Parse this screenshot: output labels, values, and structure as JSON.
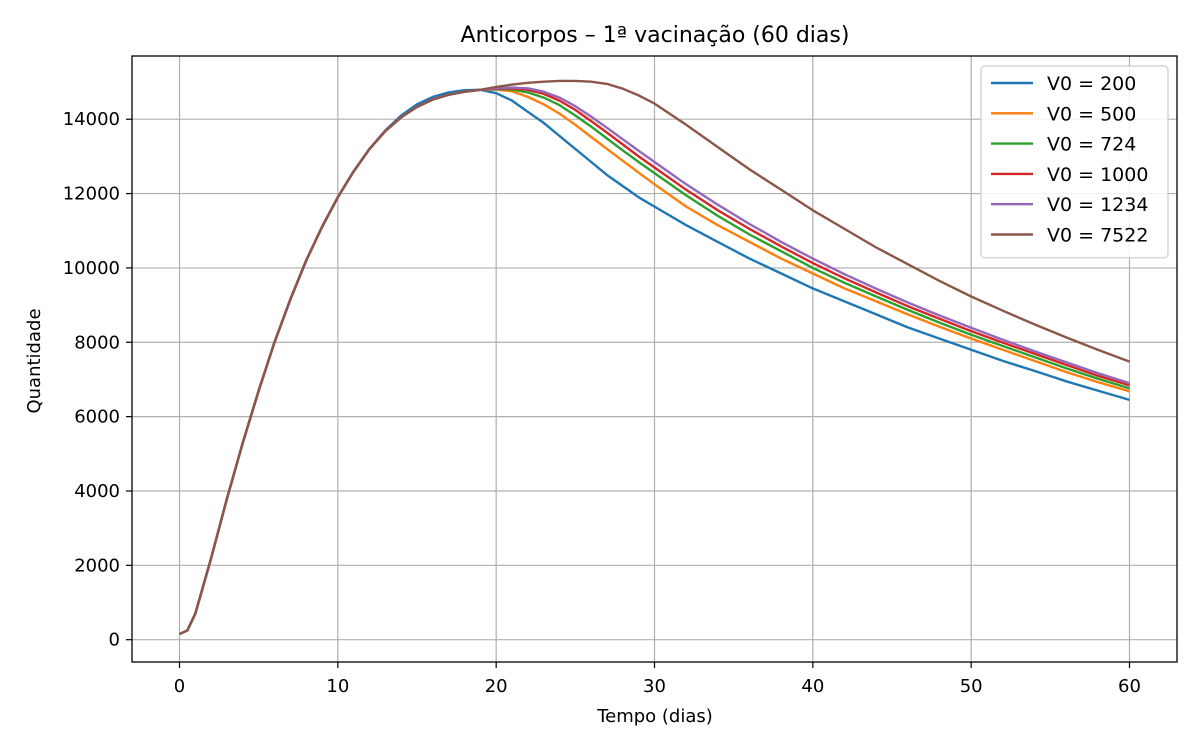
{
  "chart_data": {
    "type": "line",
    "title": "Anticorpos – 1ª vacinação (60 dias)",
    "xlabel": "Tempo (dias)",
    "ylabel": "Quantidade",
    "xlim": [
      -3,
      63
    ],
    "ylim": [
      -600,
      15700
    ],
    "xticks": [
      0,
      10,
      20,
      30,
      40,
      50,
      60
    ],
    "yticks": [
      0,
      2000,
      4000,
      6000,
      8000,
      10000,
      12000,
      14000
    ],
    "grid": true,
    "legend_position": "top-right",
    "series": [
      {
        "name": "V0 = 200",
        "color": "#1f77b4",
        "points": [
          [
            0,
            150
          ],
          [
            0.5,
            250
          ],
          [
            1,
            700
          ],
          [
            2,
            2200
          ],
          [
            3,
            3800
          ],
          [
            4,
            5300
          ],
          [
            5,
            6700
          ],
          [
            6,
            8000
          ],
          [
            7,
            9150
          ],
          [
            8,
            10200
          ],
          [
            9,
            11100
          ],
          [
            10,
            11900
          ],
          [
            11,
            12600
          ],
          [
            12,
            13200
          ],
          [
            13,
            13700
          ],
          [
            14,
            14100
          ],
          [
            15,
            14400
          ],
          [
            16,
            14600
          ],
          [
            17,
            14720
          ],
          [
            18,
            14780
          ],
          [
            19,
            14790
          ],
          [
            20,
            14700
          ],
          [
            21,
            14500
          ],
          [
            22,
            14200
          ],
          [
            23,
            13900
          ],
          [
            24,
            13550
          ],
          [
            25,
            13200
          ],
          [
            26,
            12850
          ],
          [
            27,
            12500
          ],
          [
            28,
            12200
          ],
          [
            29,
            11900
          ],
          [
            30,
            11650
          ],
          [
            32,
            11150
          ],
          [
            34,
            10700
          ],
          [
            36,
            10250
          ],
          [
            38,
            9850
          ],
          [
            40,
            9450
          ],
          [
            42,
            9100
          ],
          [
            44,
            8750
          ],
          [
            46,
            8400
          ],
          [
            48,
            8100
          ],
          [
            50,
            7800
          ],
          [
            52,
            7500
          ],
          [
            54,
            7230
          ],
          [
            56,
            6950
          ],
          [
            58,
            6700
          ],
          [
            60,
            6450
          ]
        ]
      },
      {
        "name": "V0 = 500",
        "color": "#ff7f0e",
        "points": [
          [
            0,
            150
          ],
          [
            0.5,
            250
          ],
          [
            1,
            700
          ],
          [
            2,
            2200
          ],
          [
            3,
            3800
          ],
          [
            4,
            5300
          ],
          [
            5,
            6700
          ],
          [
            6,
            8000
          ],
          [
            7,
            9150
          ],
          [
            8,
            10200
          ],
          [
            9,
            11100
          ],
          [
            10,
            11900
          ],
          [
            11,
            12600
          ],
          [
            12,
            13200
          ],
          [
            13,
            13680
          ],
          [
            14,
            14050
          ],
          [
            15,
            14330
          ],
          [
            16,
            14530
          ],
          [
            17,
            14660
          ],
          [
            18,
            14740
          ],
          [
            19,
            14790
          ],
          [
            20,
            14800
          ],
          [
            21,
            14750
          ],
          [
            22,
            14600
          ],
          [
            23,
            14400
          ],
          [
            24,
            14150
          ],
          [
            25,
            13850
          ],
          [
            26,
            13520
          ],
          [
            27,
            13200
          ],
          [
            28,
            12880
          ],
          [
            29,
            12560
          ],
          [
            30,
            12250
          ],
          [
            32,
            11650
          ],
          [
            34,
            11150
          ],
          [
            36,
            10700
          ],
          [
            38,
            10250
          ],
          [
            40,
            9850
          ],
          [
            42,
            9450
          ],
          [
            44,
            9100
          ],
          [
            46,
            8750
          ],
          [
            48,
            8420
          ],
          [
            50,
            8100
          ],
          [
            52,
            7800
          ],
          [
            54,
            7500
          ],
          [
            56,
            7200
          ],
          [
            58,
            6930
          ],
          [
            60,
            6680
          ]
        ]
      },
      {
        "name": "V0 = 724",
        "color": "#2ca02c",
        "points": [
          [
            0,
            150
          ],
          [
            0.5,
            250
          ],
          [
            1,
            700
          ],
          [
            2,
            2200
          ],
          [
            3,
            3800
          ],
          [
            4,
            5300
          ],
          [
            5,
            6700
          ],
          [
            6,
            8000
          ],
          [
            7,
            9150
          ],
          [
            8,
            10200
          ],
          [
            9,
            11100
          ],
          [
            10,
            11900
          ],
          [
            11,
            12600
          ],
          [
            12,
            13200
          ],
          [
            13,
            13680
          ],
          [
            14,
            14050
          ],
          [
            15,
            14330
          ],
          [
            16,
            14530
          ],
          [
            17,
            14660
          ],
          [
            18,
            14740
          ],
          [
            19,
            14790
          ],
          [
            20,
            14810
          ],
          [
            21,
            14800
          ],
          [
            22,
            14720
          ],
          [
            23,
            14580
          ],
          [
            24,
            14380
          ],
          [
            25,
            14100
          ],
          [
            26,
            13800
          ],
          [
            27,
            13480
          ],
          [
            28,
            13160
          ],
          [
            29,
            12850
          ],
          [
            30,
            12550
          ],
          [
            32,
            11950
          ],
          [
            34,
            11400
          ],
          [
            36,
            10900
          ],
          [
            38,
            10450
          ],
          [
            40,
            10000
          ],
          [
            42,
            9600
          ],
          [
            44,
            9230
          ],
          [
            46,
            8870
          ],
          [
            48,
            8530
          ],
          [
            50,
            8200
          ],
          [
            52,
            7900
          ],
          [
            54,
            7600
          ],
          [
            56,
            7300
          ],
          [
            58,
            7020
          ],
          [
            60,
            6760
          ]
        ]
      },
      {
        "name": "V0 = 1000",
        "color": "#d62728",
        "points": [
          [
            0,
            150
          ],
          [
            0.5,
            250
          ],
          [
            1,
            700
          ],
          [
            2,
            2200
          ],
          [
            3,
            3800
          ],
          [
            4,
            5300
          ],
          [
            5,
            6700
          ],
          [
            6,
            8000
          ],
          [
            7,
            9150
          ],
          [
            8,
            10200
          ],
          [
            9,
            11100
          ],
          [
            10,
            11900
          ],
          [
            11,
            12600
          ],
          [
            12,
            13200
          ],
          [
            13,
            13680
          ],
          [
            14,
            14050
          ],
          [
            15,
            14330
          ],
          [
            16,
            14530
          ],
          [
            17,
            14660
          ],
          [
            18,
            14740
          ],
          [
            19,
            14790
          ],
          [
            20,
            14820
          ],
          [
            21,
            14830
          ],
          [
            22,
            14790
          ],
          [
            23,
            14680
          ],
          [
            24,
            14500
          ],
          [
            25,
            14250
          ],
          [
            26,
            13950
          ],
          [
            27,
            13640
          ],
          [
            28,
            13320
          ],
          [
            29,
            13000
          ],
          [
            30,
            12700
          ],
          [
            32,
            12100
          ],
          [
            34,
            11550
          ],
          [
            36,
            11050
          ],
          [
            38,
            10580
          ],
          [
            40,
            10130
          ],
          [
            42,
            9720
          ],
          [
            44,
            9340
          ],
          [
            46,
            8970
          ],
          [
            48,
            8630
          ],
          [
            50,
            8300
          ],
          [
            52,
            7990
          ],
          [
            54,
            7690
          ],
          [
            56,
            7390
          ],
          [
            58,
            7100
          ],
          [
            60,
            6840
          ]
        ]
      },
      {
        "name": "V0 = 1234",
        "color": "#9467bd",
        "points": [
          [
            0,
            150
          ],
          [
            0.5,
            250
          ],
          [
            1,
            700
          ],
          [
            2,
            2200
          ],
          [
            3,
            3800
          ],
          [
            4,
            5300
          ],
          [
            5,
            6700
          ],
          [
            6,
            8000
          ],
          [
            7,
            9150
          ],
          [
            8,
            10200
          ],
          [
            9,
            11100
          ],
          [
            10,
            11900
          ],
          [
            11,
            12600
          ],
          [
            12,
            13200
          ],
          [
            13,
            13680
          ],
          [
            14,
            14050
          ],
          [
            15,
            14330
          ],
          [
            16,
            14530
          ],
          [
            17,
            14660
          ],
          [
            18,
            14740
          ],
          [
            19,
            14790
          ],
          [
            20,
            14830
          ],
          [
            21,
            14850
          ],
          [
            22,
            14830
          ],
          [
            23,
            14740
          ],
          [
            24,
            14580
          ],
          [
            25,
            14350
          ],
          [
            26,
            14070
          ],
          [
            27,
            13770
          ],
          [
            28,
            13460
          ],
          [
            29,
            13150
          ],
          [
            30,
            12850
          ],
          [
            32,
            12250
          ],
          [
            34,
            11700
          ],
          [
            36,
            11180
          ],
          [
            38,
            10700
          ],
          [
            40,
            10250
          ],
          [
            42,
            9830
          ],
          [
            44,
            9440
          ],
          [
            46,
            9070
          ],
          [
            48,
            8720
          ],
          [
            50,
            8390
          ],
          [
            52,
            8070
          ],
          [
            54,
            7760
          ],
          [
            56,
            7460
          ],
          [
            58,
            7170
          ],
          [
            60,
            6900
          ]
        ]
      },
      {
        "name": "V0 = 7522",
        "color": "#8c564b",
        "points": [
          [
            0,
            150
          ],
          [
            0.5,
            250
          ],
          [
            1,
            700
          ],
          [
            2,
            2200
          ],
          [
            3,
            3800
          ],
          [
            4,
            5300
          ],
          [
            5,
            6700
          ],
          [
            6,
            8000
          ],
          [
            7,
            9150
          ],
          [
            8,
            10200
          ],
          [
            9,
            11100
          ],
          [
            10,
            11900
          ],
          [
            11,
            12600
          ],
          [
            12,
            13200
          ],
          [
            13,
            13680
          ],
          [
            14,
            14050
          ],
          [
            15,
            14330
          ],
          [
            16,
            14530
          ],
          [
            17,
            14660
          ],
          [
            18,
            14740
          ],
          [
            19,
            14790
          ],
          [
            20,
            14870
          ],
          [
            21,
            14930
          ],
          [
            22,
            14980
          ],
          [
            23,
            15010
          ],
          [
            24,
            15030
          ],
          [
            25,
            15030
          ],
          [
            26,
            15010
          ],
          [
            27,
            14950
          ],
          [
            28,
            14820
          ],
          [
            29,
            14640
          ],
          [
            30,
            14420
          ],
          [
            32,
            13850
          ],
          [
            34,
            13250
          ],
          [
            36,
            12650
          ],
          [
            38,
            12100
          ],
          [
            40,
            11550
          ],
          [
            42,
            11050
          ],
          [
            44,
            10550
          ],
          [
            46,
            10100
          ],
          [
            48,
            9650
          ],
          [
            50,
            9230
          ],
          [
            52,
            8850
          ],
          [
            54,
            8480
          ],
          [
            56,
            8130
          ],
          [
            58,
            7800
          ],
          [
            60,
            7480
          ]
        ]
      }
    ]
  }
}
